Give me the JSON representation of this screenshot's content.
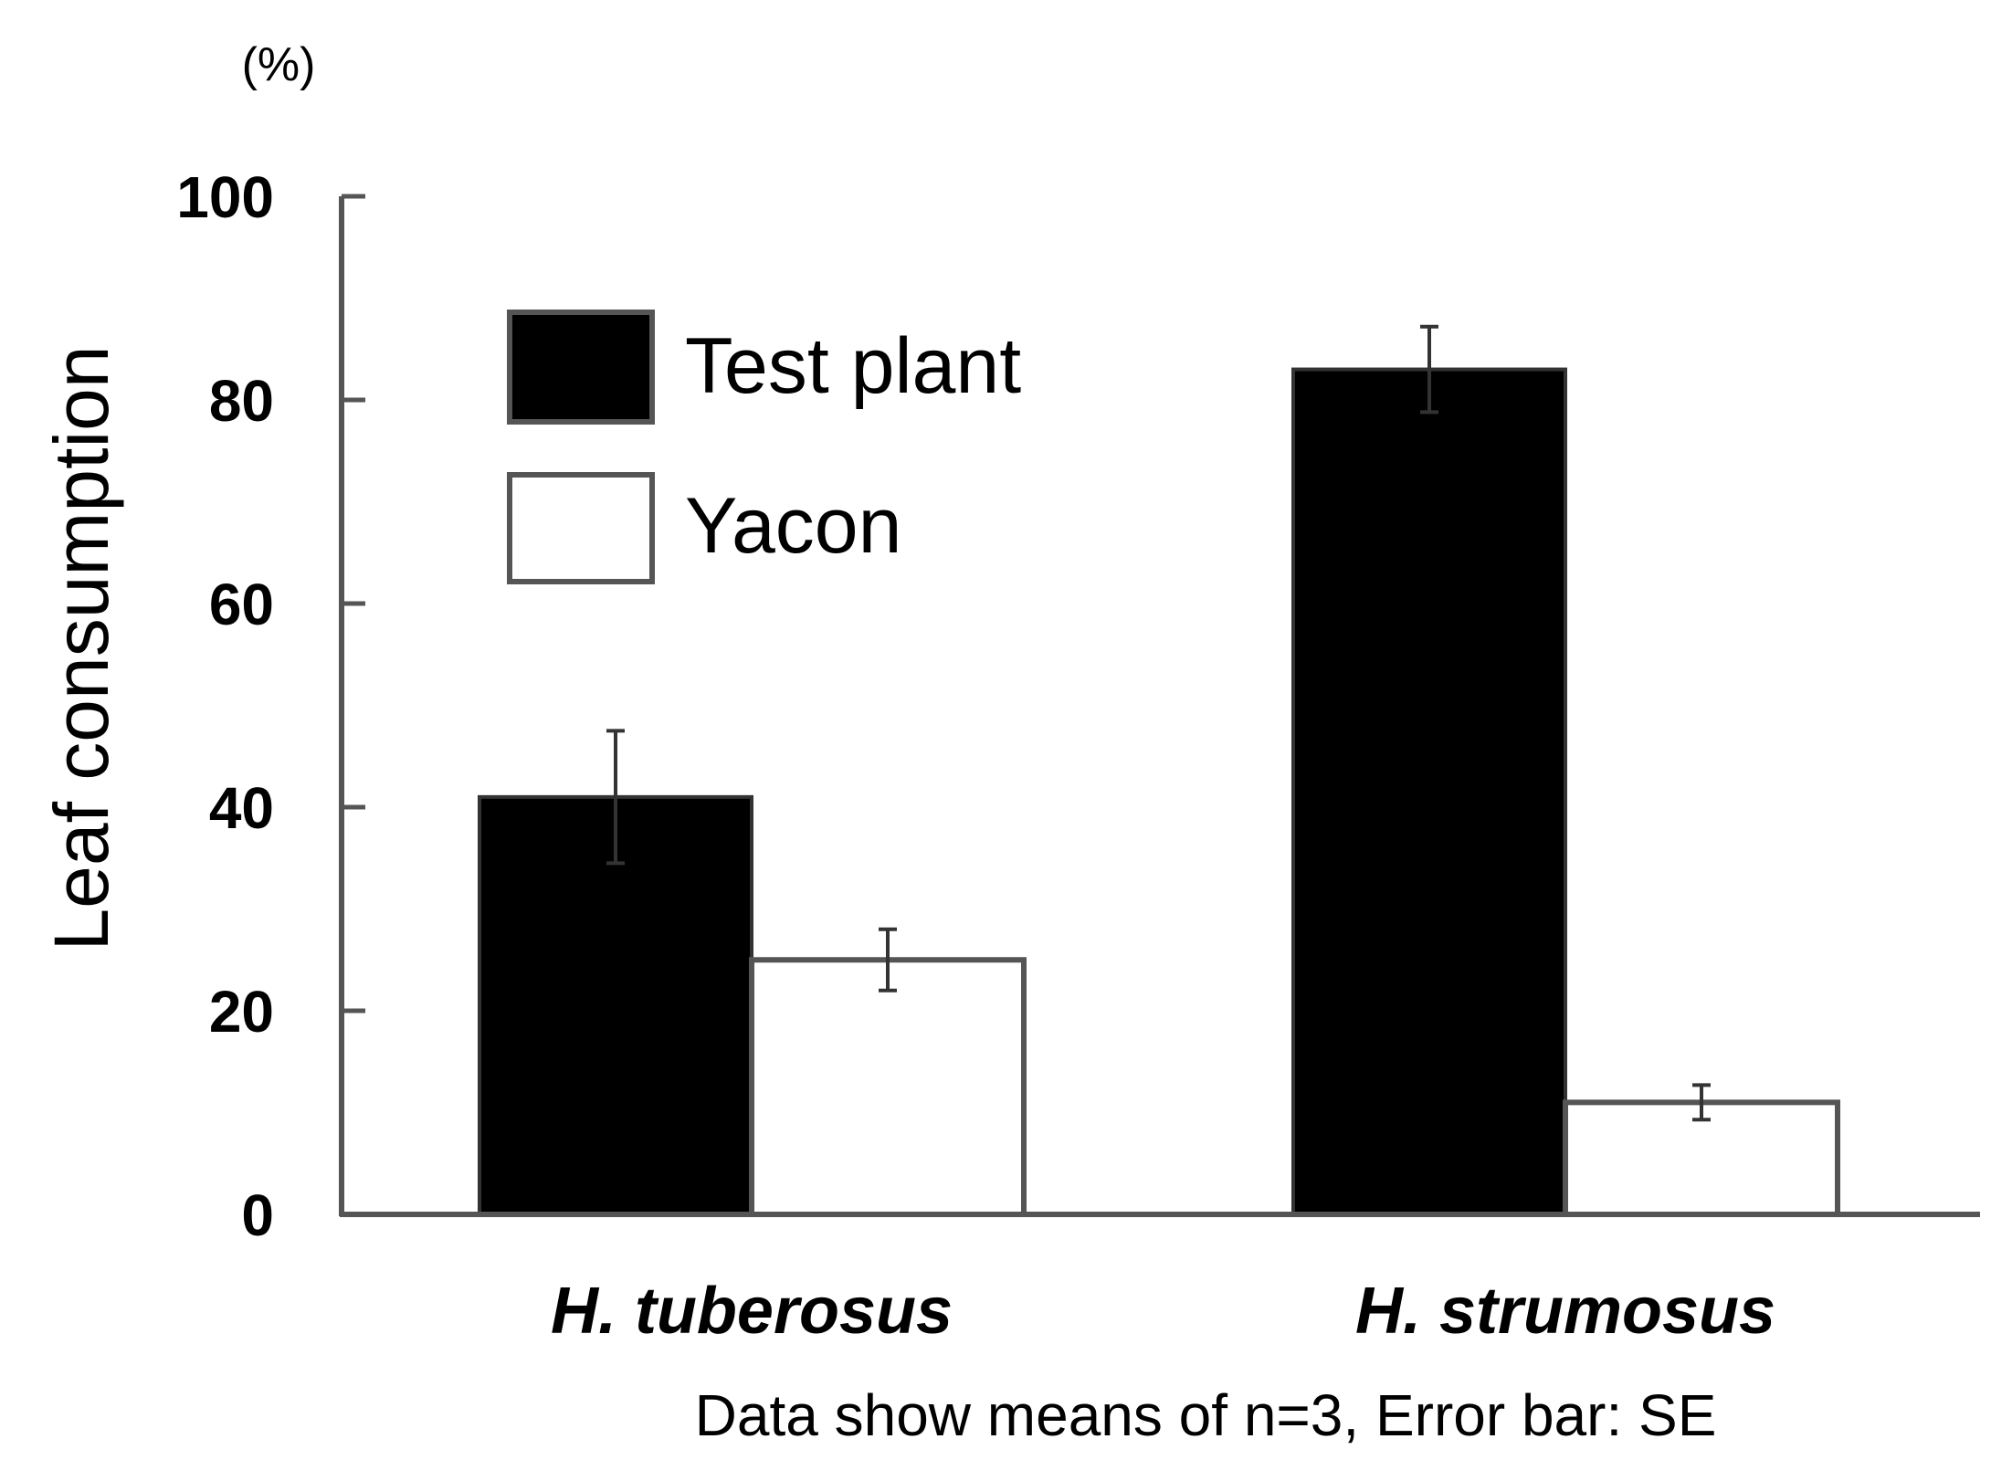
{
  "chart_data": {
    "type": "bar",
    "unit_label": "(%)",
    "ylabel": "Leaf consumption",
    "xlabel": "",
    "ylim": [
      0,
      100
    ],
    "yticks": [
      0,
      20,
      40,
      60,
      80,
      100
    ],
    "yticks_text": [
      "0",
      "20",
      "40",
      "60",
      "80",
      "100"
    ],
    "categories": [
      "H. tuberosus",
      "H. strumosus"
    ],
    "series": [
      {
        "name": "Test plant",
        "color": "#000000",
        "values": [
          41,
          83
        ],
        "errors": [
          6.5,
          4.2
        ]
      },
      {
        "name": "Yacon",
        "color": "#ffffff",
        "values": [
          25,
          11
        ],
        "errors": [
          3.0,
          1.7
        ]
      }
    ],
    "error_bar_type": "SE",
    "legend_position": "top-left",
    "grid": false,
    "note": "Data show means of n=3, Error bar: SE"
  }
}
